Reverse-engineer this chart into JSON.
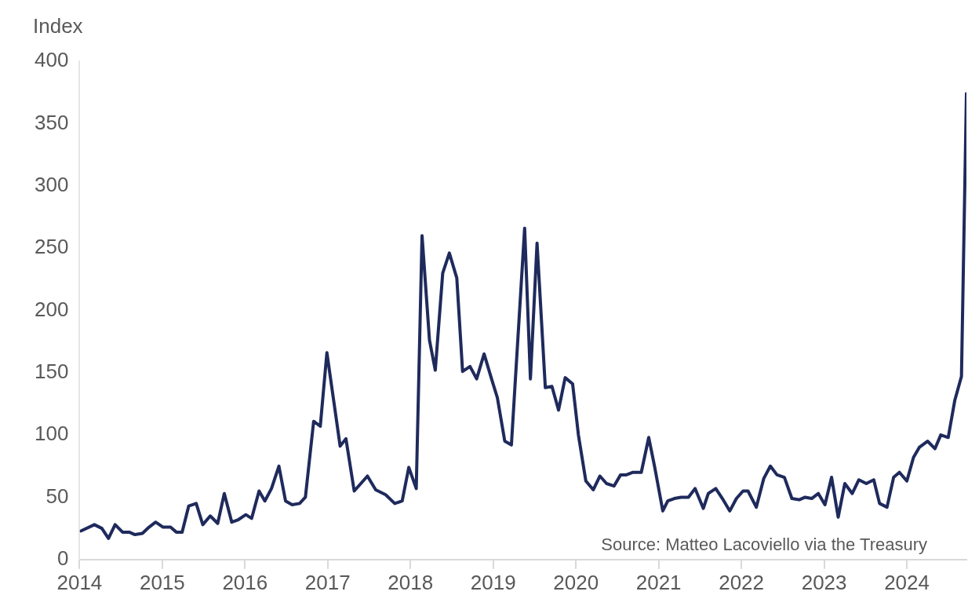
{
  "chart_data": {
    "type": "line",
    "ylabel": "Index",
    "annotations": [
      "Source: Matteo Lacoviello via the Treasury"
    ],
    "xlim": [
      2014,
      2024.72
    ],
    "xticks": [
      2014,
      2015,
      2016,
      2017,
      2018,
      2019,
      2020,
      2021,
      2022,
      2023,
      2024
    ],
    "ylim": [
      0,
      400
    ],
    "yticks": [
      0,
      50,
      100,
      150,
      200,
      250,
      300,
      350,
      400
    ],
    "grid": false,
    "legend": false,
    "marker": "none",
    "line_style": "solid",
    "series": [
      {
        "color": "#1f2a5c",
        "x": [
          2014.02,
          2014.18,
          2014.27,
          2014.35,
          2014.43,
          2014.52,
          2014.6,
          2014.67,
          2014.76,
          2014.84,
          2014.92,
          2015.01,
          2015.1,
          2015.17,
          2015.24,
          2015.32,
          2015.41,
          2015.49,
          2015.58,
          2015.67,
          2015.75,
          2015.84,
          2015.92,
          2016.01,
          2016.08,
          2016.17,
          2016.24,
          2016.32,
          2016.41,
          2016.49,
          2016.57,
          2016.66,
          2016.73,
          2016.83,
          2016.91,
          2016.99,
          2017.15,
          2017.22,
          2017.32,
          2017.48,
          2017.58,
          2017.7,
          2017.81,
          2017.9,
          2017.98,
          2018.07,
          2018.14,
          2018.23,
          2018.3,
          2018.39,
          2018.47,
          2018.56,
          2018.63,
          2018.72,
          2018.8,
          2018.89,
          2018.98,
          2019.05,
          2019.14,
          2019.22,
          2019.38,
          2019.45,
          2019.53,
          2019.63,
          2019.71,
          2019.79,
          2019.87,
          2019.96,
          2020.03,
          2020.12,
          2020.21,
          2020.29,
          2020.37,
          2020.46,
          2020.54,
          2020.61,
          2020.69,
          2020.79,
          2020.88,
          2020.95,
          2021.05,
          2021.11,
          2021.19,
          2021.27,
          2021.36,
          2021.44,
          2021.54,
          2021.6,
          2021.69,
          2021.77,
          2021.86,
          2021.94,
          2022.02,
          2022.08,
          2022.18,
          2022.27,
          2022.35,
          2022.43,
          2022.52,
          2022.61,
          2022.7,
          2022.77,
          2022.85,
          2022.93,
          2023.01,
          2023.09,
          2023.17,
          2023.25,
          2023.34,
          2023.42,
          2023.51,
          2023.6,
          2023.67,
          2023.76,
          2023.84,
          2023.91,
          2024.0,
          2024.08,
          2024.15,
          2024.25,
          2024.34,
          2024.41,
          2024.5,
          2024.58,
          2024.66,
          2024.72
        ],
        "values": [
          23,
          28,
          25,
          17,
          28,
          22,
          22,
          20,
          21,
          26,
          30,
          26,
          26,
          22,
          22,
          43,
          45,
          28,
          35,
          29,
          53,
          30,
          32,
          36,
          33,
          55,
          47,
          57,
          75,
          47,
          44,
          45,
          50,
          111,
          107,
          166,
          91,
          97,
          55,
          67,
          56,
          52,
          45,
          47,
          74,
          57,
          260,
          176,
          152,
          230,
          246,
          226,
          151,
          155,
          145,
          165,
          145,
          130,
          95,
          92,
          266,
          145,
          254,
          138,
          139,
          120,
          146,
          141,
          100,
          63,
          56,
          67,
          61,
          59,
          68,
          68,
          70,
          70,
          98,
          75,
          39,
          47,
          49,
          50,
          50,
          57,
          41,
          53,
          57,
          49,
          39,
          49,
          55,
          55,
          42,
          65,
          75,
          68,
          66,
          49,
          48,
          50,
          49,
          53,
          44,
          66,
          34,
          61,
          53,
          64,
          61,
          64,
          45,
          42,
          66,
          70,
          63,
          82,
          90,
          95,
          89,
          100,
          98,
          128,
          147,
          374
        ]
      }
    ]
  }
}
